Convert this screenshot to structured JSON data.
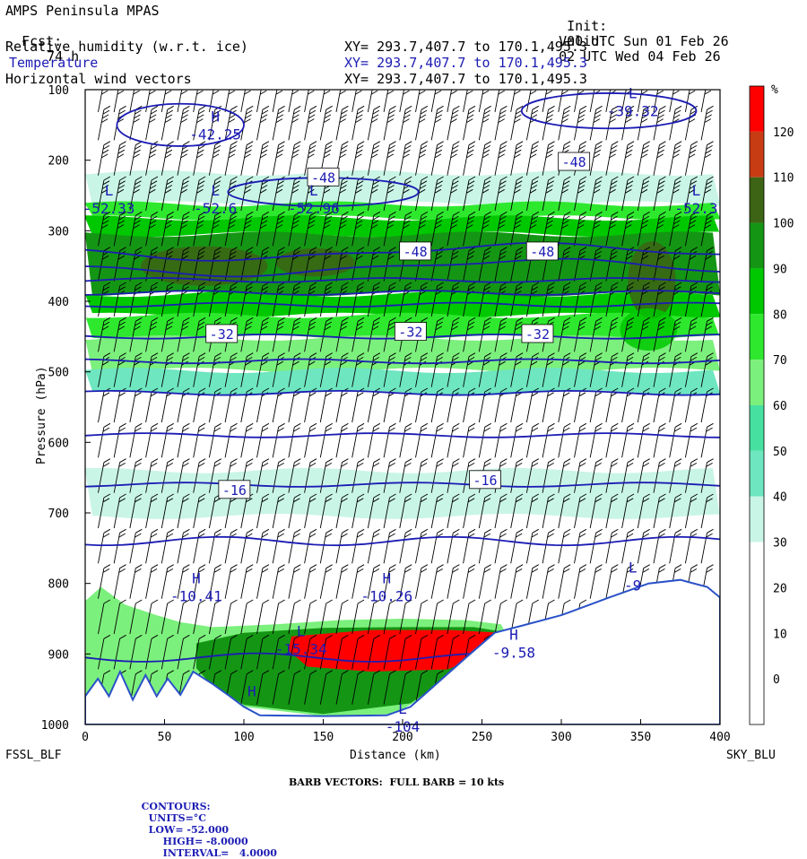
{
  "header": {
    "model": "AMPS Peninsula MPAS",
    "fcst_label": "Fcst:",
    "fcst_value": "74 h",
    "init_label": "Init:",
    "init_value": "00 UTC Sun 01 Feb 26",
    "valid_label": "Valid:",
    "valid_value": "02 UTC Wed 04 Feb 26",
    "fields": [
      {
        "name": "Relative humidity (w.r.t. ice)",
        "xy": "XY= 293.7,407.7 to 170.1,495.3"
      },
      {
        "name": "Temperature",
        "xy": "XY= 293.7,407.7 to 170.1,495.3"
      },
      {
        "name": "Horizontal wind vectors",
        "xy": "XY= 293.7,407.7 to 170.1,495.3"
      }
    ]
  },
  "colors": {
    "contour": "#1c1cb4",
    "header_blue": "#1c1cb4",
    "terrain": "#2a52c8"
  },
  "chart_data": {
    "type": "heatmap",
    "title": "Relative humidity (w.r.t. ice) cross-section with temperature contours and wind barbs",
    "xlabel": "Distance (km)",
    "ylabel": "Pressure (hPa)",
    "xlim": [
      0,
      400
    ],
    "ylim": [
      1000,
      100
    ],
    "x_ticks": [
      0,
      50,
      100,
      150,
      200,
      250,
      300,
      350,
      400
    ],
    "y_ticks": [
      100,
      200,
      300,
      400,
      500,
      600,
      700,
      800,
      900,
      1000
    ],
    "x_start_label": "FSSL_BLF",
    "x_end_label": "SKY_BLU",
    "colorbar": {
      "unit": "%",
      "levels": [
        0,
        10,
        20,
        30,
        40,
        50,
        60,
        70,
        80,
        90,
        100,
        110,
        120
      ],
      "colors": [
        "#ffffff",
        "#ffffff",
        "#ffffff",
        "#ffffff",
        "#c9f5e6",
        "#6ee6c0",
        "#46e0a0",
        "#7cf07c",
        "#2ee82e",
        "#00c800",
        "#149614",
        "#3c6414",
        "#c83c14",
        "#ff0000"
      ]
    },
    "rh_bands": [
      {
        "p_top": 218,
        "p_bottom": 262,
        "level": 30
      },
      {
        "p_top": 262,
        "p_bottom": 282,
        "level": 70
      },
      {
        "p_top": 282,
        "p_bottom": 305,
        "level": 80
      },
      {
        "p_top": 305,
        "p_bottom": 390,
        "level": 90
      },
      {
        "p_top": 390,
        "p_bottom": 420,
        "level": 80
      },
      {
        "p_top": 420,
        "p_bottom": 452,
        "level": 70
      },
      {
        "p_top": 452,
        "p_bottom": 498,
        "level": 60
      },
      {
        "p_top": 498,
        "p_bottom": 530,
        "level": 40
      },
      {
        "p_top": 640,
        "p_bottom": 705,
        "level": 30
      }
    ],
    "rh_blobs": [
      {
        "x": 75,
        "p": 350,
        "rx": 40,
        "rp": 28,
        "level": 100
      },
      {
        "x": 145,
        "p": 345,
        "rx": 25,
        "rp": 20,
        "level": 100
      },
      {
        "x": 357,
        "p": 370,
        "rx": 15,
        "rp": 55,
        "level": 100
      },
      {
        "x": 355,
        "p": 440,
        "rx": 18,
        "rp": 30,
        "level": 80
      }
    ],
    "low_level_rh": {
      "outer": [
        [
          0,
          825
        ],
        [
          10,
          805
        ],
        [
          25,
          830
        ],
        [
          45,
          845
        ],
        [
          60,
          855
        ],
        [
          80,
          862
        ],
        [
          120,
          858
        ],
        [
          160,
          852
        ],
        [
          200,
          850
        ],
        [
          240,
          852
        ],
        [
          262,
          858
        ],
        [
          265,
          870
        ],
        [
          250,
          905
        ],
        [
          230,
          935
        ],
        [
          210,
          965
        ],
        [
          195,
          985
        ],
        [
          150,
          988
        ],
        [
          100,
          975
        ],
        [
          75,
          960
        ],
        [
          50,
          955
        ],
        [
          30,
          960
        ],
        [
          10,
          965
        ],
        [
          0,
          960
        ]
      ],
      "inner": [
        [
          70,
          885
        ],
        [
          100,
          870
        ],
        [
          150,
          863
        ],
        [
          200,
          862
        ],
        [
          245,
          862
        ],
        [
          262,
          868
        ],
        [
          250,
          900
        ],
        [
          228,
          935
        ],
        [
          205,
          970
        ],
        [
          150,
          985
        ],
        [
          100,
          972
        ],
        [
          80,
          945
        ],
        [
          70,
          920
        ]
      ],
      "core": [
        [
          130,
          875
        ],
        [
          180,
          866
        ],
        [
          230,
          866
        ],
        [
          262,
          870
        ],
        [
          248,
          905
        ],
        [
          228,
          922
        ],
        [
          180,
          925
        ],
        [
          140,
          918
        ],
        [
          128,
          895
        ]
      ]
    },
    "temperature_contours_degC": [
      -8,
      -12,
      -16,
      -20,
      -24,
      -28,
      -32,
      -36,
      -40,
      -44,
      -48,
      -52
    ],
    "contour_labels": [
      {
        "text": "-48",
        "x": 150,
        "p": 225
      },
      {
        "text": "-48",
        "x": 308,
        "p": 203
      },
      {
        "text": "-48",
        "x": 208,
        "p": 330
      },
      {
        "text": "-48",
        "x": 288,
        "p": 330
      },
      {
        "text": "-32",
        "x": 86,
        "p": 447
      },
      {
        "text": "-32",
        "x": 205,
        "p": 444
      },
      {
        "text": "-32",
        "x": 285,
        "p": 447
      },
      {
        "text": "-16",
        "x": 94,
        "p": 668
      },
      {
        "text": "-16",
        "x": 252,
        "p": 654
      }
    ],
    "highs_lows": [
      {
        "mark": "H",
        "value": "-42.25",
        "x": 82,
        "p": 155
      },
      {
        "mark": "L",
        "value": "-52.33",
        "x": 15,
        "p": 260
      },
      {
        "mark": "L",
        "value": "-52.6",
        "x": 82,
        "p": 260
      },
      {
        "mark": "L",
        "value": "-52.96",
        "x": 144,
        "p": 260
      },
      {
        "mark": "L",
        "value": "-52.3",
        "x": 385,
        "p": 260
      },
      {
        "mark": "H",
        "value": "-10.41",
        "x": 70,
        "p": 810
      },
      {
        "mark": "H",
        "value": "-10.26",
        "x": 190,
        "p": 810
      },
      {
        "mark": "L",
        "value": "-15.34",
        "x": 136,
        "p": 885
      },
      {
        "mark": "H",
        "value": "-9.58",
        "x": 270,
        "p": 890
      },
      {
        "mark": "L",
        "value": "-9",
        "x": 345,
        "p": 795
      },
      {
        "mark": "L",
        "value": "-39.32",
        "x": 345,
        "p": 122
      },
      {
        "mark": "H",
        "value": "",
        "x": 105,
        "p": 970
      },
      {
        "mark": "L",
        "value": "-104",
        "x": 200,
        "p": 995
      }
    ],
    "terrain": [
      [
        0,
        1000
      ],
      [
        0,
        960
      ],
      [
        8,
        935
      ],
      [
        15,
        960
      ],
      [
        22,
        925
      ],
      [
        30,
        965
      ],
      [
        38,
        930
      ],
      [
        45,
        960
      ],
      [
        52,
        935
      ],
      [
        60,
        958
      ],
      [
        68,
        925
      ],
      [
        80,
        942
      ],
      [
        90,
        958
      ],
      [
        100,
        975
      ],
      [
        110,
        987
      ],
      [
        150,
        988
      ],
      [
        190,
        987
      ],
      [
        205,
        975
      ],
      [
        220,
        945
      ],
      [
        240,
        905
      ],
      [
        258,
        870
      ],
      [
        275,
        860
      ],
      [
        300,
        845
      ],
      [
        330,
        820
      ],
      [
        355,
        800
      ],
      [
        375,
        795
      ],
      [
        392,
        805
      ],
      [
        400,
        820
      ],
      [
        400,
        1000
      ]
    ],
    "wind_barbs": {
      "x_columns": [
        10,
        20,
        30,
        40,
        50,
        60,
        70,
        80,
        90,
        100,
        110,
        120,
        130,
        140,
        150,
        160,
        170,
        180,
        190,
        200,
        210,
        220,
        230,
        240,
        250,
        260,
        270,
        280,
        290,
        300,
        310,
        320,
        330,
        340,
        350,
        360,
        370,
        380,
        390
      ],
      "levels_hPa": [
        110,
        150,
        200,
        250,
        300,
        350,
        400,
        450,
        500,
        550,
        600,
        650,
        700,
        750,
        800,
        850,
        900,
        950
      ],
      "speed_kts_by_level": [
        40,
        40,
        40,
        35,
        35,
        30,
        30,
        25,
        25,
        20,
        20,
        20,
        20,
        20,
        20,
        10,
        10,
        10
      ],
      "direction_tilt": "shaft tilted, barbs on upper-right"
    }
  },
  "footer": {
    "barb_line": "BARB VECTORS:  FULL BARB = 10 kts",
    "contours_label": "CONTOURS:",
    "units": "UNITS=°C",
    "low": "LOW= -52.000",
    "high": "HIGH= -8.0000",
    "interval": "INTERVAL=   4.0000"
  }
}
